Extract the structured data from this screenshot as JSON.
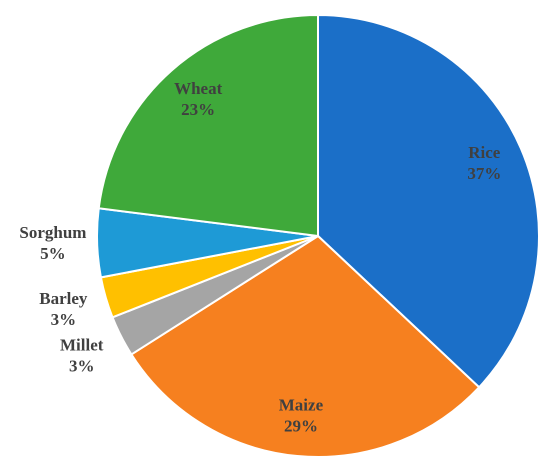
{
  "chart_data": {
    "type": "pie",
    "categories": [
      "Rice",
      "Maize",
      "Millet",
      "Barley",
      "Sorghum",
      "Wheat"
    ],
    "values": [
      37,
      29,
      3,
      3,
      5,
      23
    ],
    "value_labels": [
      "37%",
      "29%",
      "3%",
      "3%",
      "5%",
      "23%"
    ],
    "colors": [
      "#1b6fc8",
      "#f6801f",
      "#a5a5a5",
      "#ffc000",
      "#1e9ad6",
      "#3fa93a"
    ]
  }
}
